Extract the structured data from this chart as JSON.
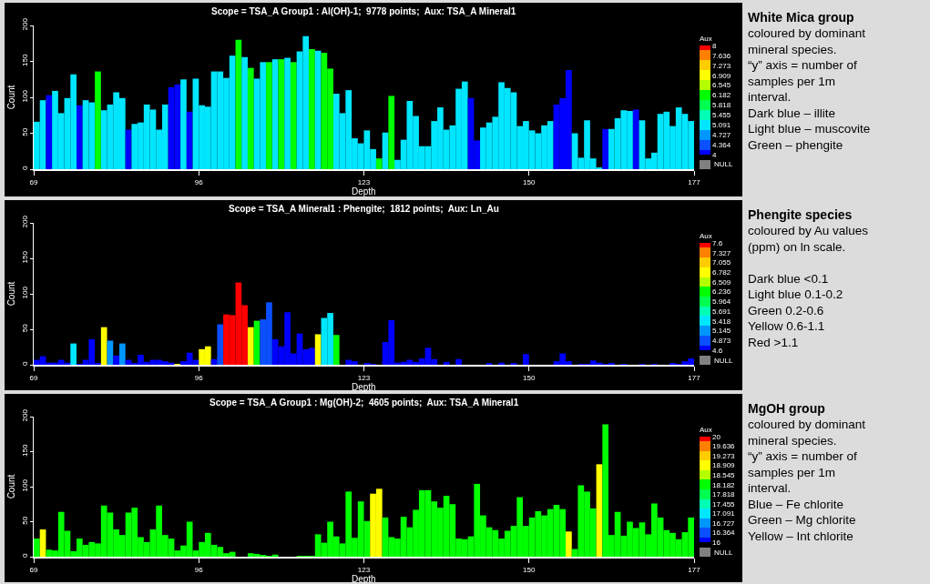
{
  "chart_data": [
    {
      "type": "histogram",
      "title": "Scope = TSA_A Group1 : Al(OH)-1;  9778 points;  Aux: TSA_A Mineral1",
      "xlabel": "Depth",
      "ylabel": "Count",
      "bins": [
        69,
        70,
        71,
        72,
        73,
        74,
        75,
        76,
        77,
        78,
        79,
        80,
        81,
        82,
        83,
        84,
        85,
        86,
        87,
        88,
        89,
        90,
        91,
        92,
        93,
        94,
        95,
        96,
        97,
        98,
        99,
        100,
        101,
        102,
        103,
        104,
        105,
        106,
        107,
        108,
        109,
        110,
        111,
        112,
        113,
        114,
        115,
        116,
        117,
        118,
        119,
        120,
        121,
        122,
        123,
        124,
        125,
        126,
        127,
        128,
        129,
        130,
        131,
        132,
        133,
        134,
        135,
        136,
        137,
        138,
        139,
        140,
        141,
        142,
        143,
        144,
        145,
        146,
        147,
        148,
        149,
        150,
        151,
        152,
        153,
        154,
        155,
        156,
        157,
        158,
        159,
        160,
        161,
        162,
        163,
        164,
        165,
        166,
        167,
        168,
        169,
        170,
        171,
        172,
        173,
        174,
        175,
        176,
        177
      ],
      "values": [
        66,
        96,
        103,
        109,
        78,
        99,
        132,
        89,
        96,
        93,
        136,
        82,
        90,
        107,
        99,
        55,
        63,
        65,
        90,
        83,
        55,
        90,
        114,
        118,
        125,
        80,
        126,
        89,
        87,
        136,
        136,
        127,
        158,
        180,
        156,
        141,
        126,
        149,
        149,
        153,
        153,
        155,
        149,
        164,
        185,
        167,
        165,
        162,
        140,
        105,
        78,
        110,
        43,
        36,
        54,
        28,
        15,
        51,
        102,
        13,
        41,
        95,
        74,
        32,
        32,
        67,
        86,
        55,
        61,
        112,
        122,
        99,
        40,
        58,
        65,
        73,
        121,
        113,
        107,
        60,
        67,
        54,
        50,
        61,
        67,
        90,
        99,
        138,
        50,
        16,
        68,
        15,
        2,
        56,
        56,
        71,
        82,
        81,
        83,
        68,
        15,
        23,
        77,
        80,
        60,
        86,
        77,
        67
      ],
      "cvalues": [
        5.091,
        5.091,
        4,
        5.091,
        5.091,
        5.091,
        5.091,
        4,
        5.091,
        5.091,
        6.182,
        5.091,
        5.091,
        5.091,
        5.091,
        4,
        5.091,
        5.091,
        5.091,
        5.091,
        5.091,
        5.091,
        4,
        4,
        5.091,
        4,
        5.091,
        5.091,
        5.091,
        5.091,
        5.091,
        5.091,
        5.091,
        6.182,
        5.091,
        6.182,
        5.091,
        5.091,
        6.182,
        5.091,
        6.182,
        5.091,
        6.182,
        5.091,
        5.091,
        6.182,
        5.091,
        6.182,
        6.182,
        5.091,
        5.091,
        5.091,
        5.091,
        5.091,
        5.091,
        5.091,
        6.182,
        5.091,
        6.182,
        5.091,
        5.091,
        5.091,
        5.091,
        5.091,
        5.091,
        5.091,
        5.091,
        5.091,
        5.091,
        5.091,
        5.091,
        4,
        4,
        5.091,
        5.091,
        5.091,
        5.091,
        5.091,
        5.091,
        5.091,
        5.091,
        5.091,
        5.091,
        5.091,
        5.091,
        4,
        4,
        4,
        5.091,
        5.091,
        5.091,
        5.091,
        5.091,
        4,
        5.091,
        5.091,
        5.091,
        5.091,
        4,
        5.091,
        5.091,
        5.091,
        5.091,
        5.091,
        5.091,
        5.091,
        5.091,
        5.091
      ],
      "clabel": "Aux",
      "clim": [
        4,
        8
      ],
      "cticks": [
        8,
        7.636,
        7.273,
        6.909,
        6.545,
        6.182,
        5.818,
        5.455,
        5.091,
        4.727,
        4.364,
        4
      ],
      "xlim": [
        69,
        177
      ],
      "xticks": [
        69,
        96,
        123,
        150,
        177
      ],
      "ylim": [
        0,
        200
      ],
      "yticks": [
        0,
        50,
        100,
        150,
        200
      ],
      "grid": false,
      "annotations": [
        "NULL",
        "White Mica group",
        "coloured by dominant\nmineral species.\n“y” axis = number of\nsamples per 1m\ninterval.\nDark blue – illite\nLight blue – muscovite\nGreen – phengite"
      ]
    },
    {
      "type": "histogram",
      "title": "Scope = TSA_A Mineral1 : Phengite;  1812 points;  Aux: Ln_Au",
      "xlabel": "Depth",
      "ylabel": "Count",
      "bins": [
        69,
        70,
        71,
        72,
        73,
        74,
        75,
        76,
        77,
        78,
        79,
        80,
        81,
        82,
        83,
        84,
        85,
        86,
        87,
        88,
        89,
        90,
        91,
        92,
        93,
        94,
        95,
        96,
        97,
        98,
        99,
        100,
        101,
        102,
        103,
        104,
        105,
        106,
        107,
        108,
        109,
        110,
        111,
        112,
        113,
        114,
        115,
        116,
        117,
        118,
        119,
        120,
        121,
        122,
        123,
        124,
        125,
        126,
        127,
        128,
        129,
        130,
        131,
        132,
        133,
        134,
        135,
        136,
        137,
        138,
        139,
        140,
        141,
        142,
        143,
        144,
        145,
        146,
        147,
        148,
        149,
        150,
        151,
        152,
        153,
        154,
        155,
        156,
        157,
        158,
        159,
        160,
        161,
        162,
        163,
        164,
        165,
        166,
        167,
        168,
        169,
        170,
        171,
        172,
        173,
        174,
        175,
        176,
        177
      ],
      "values": [
        7,
        12,
        3,
        3,
        7,
        3,
        30,
        1,
        7,
        36,
        2,
        53,
        34,
        13,
        30,
        7,
        2,
        14,
        4,
        7,
        7,
        5,
        3,
        1,
        5,
        17,
        7,
        22,
        26,
        8,
        57,
        71,
        70,
        116,
        84,
        53,
        62,
        64,
        88,
        36,
        26,
        74,
        16,
        44,
        22,
        24,
        43,
        66,
        73,
        42,
        0,
        7,
        5,
        0,
        2,
        1,
        0,
        32,
        63,
        3,
        4,
        7,
        4,
        9,
        24,
        8,
        0,
        4,
        0,
        8,
        0,
        0,
        0,
        0,
        2,
        0,
        3,
        0,
        2,
        0,
        15,
        0,
        0,
        0,
        0,
        5,
        16,
        5,
        0,
        1,
        1,
        6,
        3,
        1,
        2,
        0,
        1,
        0,
        0,
        1,
        0,
        1,
        0,
        0,
        2,
        1,
        5,
        9
      ],
      "cvalues": [
        4.6,
        4.6,
        4.6,
        4.6,
        4.6,
        4.6,
        5.418,
        4.6,
        4.6,
        4.6,
        4.6,
        6.782,
        5.145,
        4.6,
        5.145,
        4.6,
        4.6,
        4.6,
        4.6,
        4.6,
        4.6,
        4.6,
        4.6,
        6.782,
        4.6,
        4.6,
        4.6,
        6.782,
        6.782,
        4.6,
        4.873,
        7.6,
        7.6,
        7.6,
        7.6,
        6.782,
        6.236,
        4.873,
        4.873,
        4.6,
        4.6,
        4.6,
        4.6,
        4.6,
        4.6,
        4.6,
        6.782,
        5.418,
        5.418,
        6.236,
        null,
        4.6,
        4.6,
        null,
        4.6,
        4.6,
        null,
        4.6,
        4.6,
        4.6,
        4.6,
        4.6,
        4.6,
        4.6,
        4.6,
        4.6,
        null,
        4.6,
        null,
        4.6,
        null,
        null,
        null,
        null,
        4.6,
        null,
        4.6,
        null,
        4.6,
        null,
        4.6,
        null,
        null,
        null,
        null,
        4.6,
        4.6,
        4.6,
        null,
        4.6,
        4.6,
        4.6,
        4.6,
        4.6,
        4.6,
        null,
        4.6,
        null,
        null,
        4.6,
        null,
        4.6,
        null,
        null,
        4.6,
        4.6,
        4.6,
        4.6
      ],
      "clabel": "Aux",
      "clim": [
        4.6,
        7.6
      ],
      "cticks": [
        7.6,
        7.327,
        7.055,
        6.782,
        6.509,
        6.236,
        5.964,
        5.691,
        5.418,
        5.145,
        4.873,
        4.6
      ],
      "xlim": [
        69,
        177
      ],
      "xticks": [
        69,
        96,
        123,
        150,
        177
      ],
      "ylim": [
        0,
        200
      ],
      "yticks": [
        0,
        50,
        100,
        150,
        200
      ],
      "grid": false,
      "annotations": [
        "NULL",
        "Phengite species",
        "coloured by Au values\n(ppm) on ln scale.\n\nDark blue <0.1\nLight blue 0.1-0.2\nGreen 0.2-0.6\nYellow 0.6-1.1\nRed >1.1"
      ]
    },
    {
      "type": "histogram",
      "title": "Scope = TSA_A Group1 : Mg(OH)-2;  4605 points;  Aux: TSA_A Mineral1",
      "xlabel": "Depth",
      "ylabel": "Count",
      "bins": [
        69,
        70,
        71,
        72,
        73,
        74,
        75,
        76,
        77,
        78,
        79,
        80,
        81,
        82,
        83,
        84,
        85,
        86,
        87,
        88,
        89,
        90,
        91,
        92,
        93,
        94,
        95,
        96,
        97,
        98,
        99,
        100,
        101,
        102,
        103,
        104,
        105,
        106,
        107,
        108,
        109,
        110,
        111,
        112,
        113,
        114,
        115,
        116,
        117,
        118,
        119,
        120,
        121,
        122,
        123,
        124,
        125,
        126,
        127,
        128,
        129,
        130,
        131,
        132,
        133,
        134,
        135,
        136,
        137,
        138,
        139,
        140,
        141,
        142,
        143,
        144,
        145,
        146,
        147,
        148,
        149,
        150,
        151,
        152,
        153,
        154,
        155,
        156,
        157,
        158,
        159,
        160,
        161,
        162,
        163,
        164,
        165,
        166,
        167,
        168,
        169,
        170,
        171,
        172,
        173,
        174,
        175,
        176,
        177
      ],
      "values": [
        26,
        39,
        10,
        9,
        64,
        37,
        8,
        26,
        17,
        21,
        19,
        73,
        63,
        39,
        31,
        63,
        70,
        28,
        21,
        39,
        73,
        31,
        26,
        9,
        16,
        50,
        9,
        21,
        34,
        17,
        14,
        5,
        7,
        0,
        0,
        5,
        4,
        2,
        1,
        3,
        0,
        0,
        0,
        1,
        1,
        1,
        32,
        20,
        50,
        29,
        19,
        93,
        27,
        79,
        51,
        90,
        97,
        56,
        28,
        26,
        57,
        42,
        67,
        95,
        95,
        79,
        70,
        87,
        75,
        26,
        25,
        29,
        104,
        59,
        42,
        38,
        26,
        37,
        44,
        85,
        44,
        56,
        65,
        59,
        68,
        74,
        68,
        36,
        11,
        102,
        93,
        69,
        132,
        189,
        31,
        64,
        30,
        50,
        41,
        49,
        32,
        76,
        56,
        38,
        34,
        25,
        35,
        56
      ],
      "cvalues": [
        18.182,
        18.909,
        18.182,
        18.182,
        18.182,
        18.182,
        18.182,
        18.182,
        18.182,
        18.182,
        18.182,
        18.182,
        18.182,
        18.182,
        18.182,
        18.182,
        18.182,
        18.182,
        18.182,
        18.182,
        18.182,
        18.182,
        18.182,
        18.182,
        18.182,
        18.182,
        18.182,
        18.182,
        18.182,
        18.182,
        18.182,
        18.182,
        18.182,
        null,
        null,
        18.182,
        18.182,
        18.182,
        18.182,
        18.182,
        null,
        null,
        null,
        18.182,
        18.182,
        18.182,
        18.182,
        18.182,
        18.182,
        18.182,
        18.182,
        18.182,
        18.182,
        18.182,
        18.182,
        18.909,
        18.909,
        18.182,
        18.182,
        18.182,
        18.182,
        18.182,
        18.182,
        18.182,
        18.182,
        18.182,
        18.182,
        18.182,
        18.182,
        18.182,
        18.182,
        18.182,
        18.182,
        18.182,
        18.182,
        18.182,
        18.182,
        18.182,
        18.182,
        18.182,
        18.182,
        18.182,
        18.182,
        18.182,
        18.182,
        18.182,
        18.182,
        18.909,
        18.182,
        18.182,
        18.182,
        18.182,
        18.909,
        18.182,
        18.182,
        18.182,
        18.182,
        18.182,
        18.182,
        18.182,
        18.182,
        18.182,
        18.182,
        18.182,
        18.182,
        18.182,
        18.182,
        18.182
      ],
      "clabel": "Aux",
      "clim": [
        16,
        20
      ],
      "cticks": [
        20,
        19.636,
        19.273,
        18.909,
        18.545,
        18.182,
        17.818,
        17.455,
        17.091,
        16.727,
        16.364,
        16
      ],
      "xlim": [
        69,
        177
      ],
      "xticks": [
        69,
        96,
        123,
        150,
        177
      ],
      "ylim": [
        0,
        200
      ],
      "yticks": [
        0,
        50,
        100,
        150,
        200
      ],
      "grid": false,
      "annotations": [
        "NULL",
        "MgOH group",
        "coloured by dominant\nmineral species.\n“y” axis = number of\nsamples per 1m\ninterval.\nBlue – Fe chlorite\nGreen – Mg chlorite\nYellow – Int chlorite"
      ]
    }
  ]
}
